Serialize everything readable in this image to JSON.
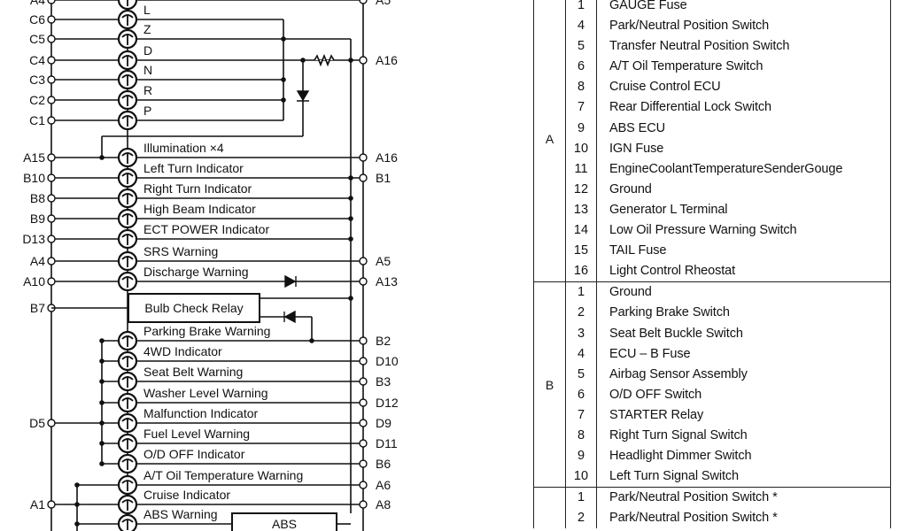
{
  "diagram": {
    "rows": [
      {
        "left": "A4",
        "label": "",
        "right": "A5"
      },
      {
        "left": "C6",
        "label": "L",
        "right": ""
      },
      {
        "left": "C5",
        "label": "Z",
        "right": ""
      },
      {
        "left": "C4",
        "label": "D",
        "right": "A16"
      },
      {
        "left": "C3",
        "label": "N",
        "right": ""
      },
      {
        "left": "C2",
        "label": "R",
        "right": ""
      },
      {
        "left": "C1",
        "label": "P",
        "right": ""
      },
      {
        "left": "A15",
        "label": "Illumination ×4",
        "right": "A16"
      },
      {
        "left": "B10",
        "label": "Left Turn Indicator",
        "right": "B1"
      },
      {
        "left": "B8",
        "label": "Right Turn Indicator",
        "right": ""
      },
      {
        "left": "B9",
        "label": "High Beam Indicator",
        "right": ""
      },
      {
        "left": "D13",
        "label": "ECT POWER Indicator",
        "right": ""
      },
      {
        "left": "A4",
        "label": "SRS Warning",
        "right": "A5"
      },
      {
        "left": "A10",
        "label": "Discharge Warning",
        "right": "A13"
      },
      {
        "left": "",
        "label": "Parking Brake Warning",
        "right": "B2"
      },
      {
        "left": "",
        "label": "4WD Indicator",
        "right": "D10"
      },
      {
        "left": "",
        "label": "Seat Belt Warning",
        "right": "B3"
      },
      {
        "left": "",
        "label": "Washer Level Warning",
        "right": "D12"
      },
      {
        "left": "D5",
        "label": "Malfunction Indicator",
        "right": "D9"
      },
      {
        "left": "",
        "label": "Fuel Level Warning",
        "right": "D11"
      },
      {
        "left": "",
        "label": "O/D OFF Indicator",
        "right": "B6"
      },
      {
        "left": "",
        "label": "A/T Oil Temperature Warning",
        "right": "A6"
      },
      {
        "left": "A1",
        "label": "Cruise Indicator",
        "right": "A8"
      },
      {
        "left": "",
        "label": "ABS Warning",
        "right": ""
      }
    ],
    "relay": {
      "left": "B7",
      "label": "Bulb Check Relay"
    },
    "abs_box": "ABS"
  },
  "pin_table": [
    {
      "group": "A",
      "pins": [
        {
          "no": "1",
          "name": "GAUGE Fuse"
        },
        {
          "no": "4",
          "name": "Park/Neutral Position Switch"
        },
        {
          "no": "5",
          "name": "Transfer Neutral Position Switch"
        },
        {
          "no": "6",
          "name": "A/T Oil Temperature Switch"
        },
        {
          "no": "8",
          "name": "Cruise Control ECU"
        },
        {
          "no": "7",
          "name": "Rear Differential Lock Switch"
        },
        {
          "no": "9",
          "name": "ABS ECU"
        },
        {
          "no": "10",
          "name": "IGN Fuse"
        },
        {
          "no": "11",
          "name": "EngineCoolantTemperatureSenderGouge"
        },
        {
          "no": "12",
          "name": "Ground"
        },
        {
          "no": "13",
          "name": "Generator L Terminal"
        },
        {
          "no": "14",
          "name": "Low Oil Pressure Warning Switch"
        },
        {
          "no": "15",
          "name": "TAIL Fuse"
        },
        {
          "no": "16",
          "name": "Light Control Rheostat"
        }
      ]
    },
    {
      "group": "B",
      "pins": [
        {
          "no": "1",
          "name": "Ground"
        },
        {
          "no": "2",
          "name": "Parking Brake Switch"
        },
        {
          "no": "3",
          "name": "Seat Belt Buckle Switch"
        },
        {
          "no": "4",
          "name": "ECU – B Fuse"
        },
        {
          "no": "5",
          "name": "Airbag Sensor Assembly"
        },
        {
          "no": "6",
          "name": "O/D OFF Switch"
        },
        {
          "no": "7",
          "name": "STARTER Relay"
        },
        {
          "no": "8",
          "name": "Right Turn Signal Switch"
        },
        {
          "no": "9",
          "name": "Headlight Dimmer Switch"
        },
        {
          "no": "10",
          "name": "Left Turn Signal Switch"
        }
      ]
    },
    {
      "group": "",
      "pins": [
        {
          "no": "1",
          "name": "Park/Neutral Position Switch *"
        },
        {
          "no": "2",
          "name": "Park/Neutral Position Switch *"
        }
      ]
    }
  ]
}
